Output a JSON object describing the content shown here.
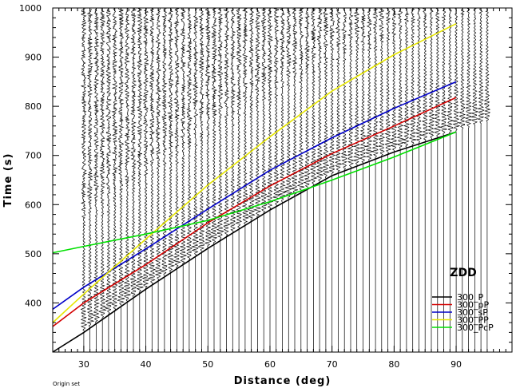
{
  "chart_data": {
    "type": "line",
    "title": "",
    "station_label": "ZDD",
    "xlabel": "Distance (deg)",
    "ylabel": "Time (s)",
    "xlim": [
      25,
      99
    ],
    "ylim": [
      300,
      1000
    ],
    "x_ticks": [
      30,
      40,
      50,
      60,
      70,
      80,
      90
    ],
    "y_ticks": [
      400,
      500,
      600,
      700,
      800,
      900,
      1000
    ],
    "grid": false,
    "legend_position": "bottom-right",
    "footnote": "Origin set",
    "series": [
      {
        "name": "300_P",
        "color": "#000000",
        "x": [
          25,
          30,
          40,
          50,
          60,
          70,
          80,
          90
        ],
        "y": [
          300,
          340,
          428,
          511,
          589,
          659,
          707,
          748
        ]
      },
      {
        "name": "300_pP",
        "color": "#d40000",
        "x": [
          25,
          30,
          40,
          50,
          60,
          70,
          80,
          90
        ],
        "y": [
          352,
          400,
          478,
          563,
          638,
          704,
          760,
          818
        ]
      },
      {
        "name": "300_sP",
        "color": "#0000c8",
        "x": [
          25,
          30,
          40,
          50,
          60,
          70,
          80,
          90
        ],
        "y": [
          387,
          432,
          510,
          591,
          670,
          736,
          796,
          850
        ]
      },
      {
        "name": "300_PP",
        "color": "#e6e600",
        "x": [
          25,
          30,
          40,
          50,
          60,
          70,
          80,
          90
        ],
        "y": [
          360,
          418,
          530,
          640,
          738,
          831,
          905,
          968
        ]
      },
      {
        "name": "300_PcP",
        "color": "#00e000",
        "x": [
          25,
          30,
          40,
          50,
          60,
          70,
          80,
          90
        ],
        "y": [
          502,
          515,
          540,
          568,
          606,
          650,
          697,
          748
        ]
      }
    ],
    "traces": {
      "distance_start": 30,
      "distance_step": 1,
      "count": 66
    }
  }
}
